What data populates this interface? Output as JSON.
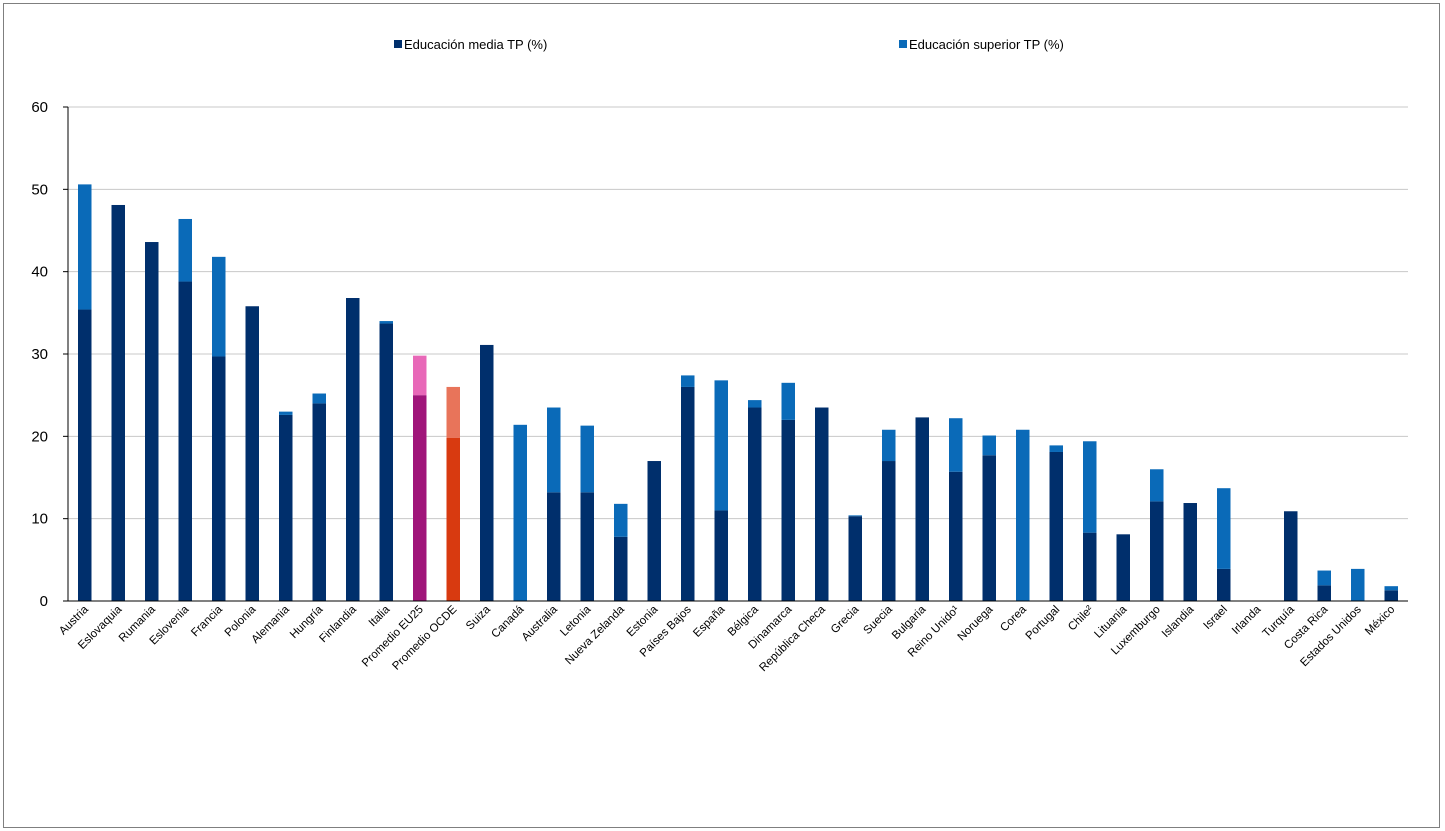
{
  "chart_data": {
    "type": "bar",
    "stacked": true,
    "title": "",
    "xlabel": "",
    "ylabel": "",
    "ylim": [
      0,
      60
    ],
    "yticks": [
      0,
      10,
      20,
      30,
      40,
      50,
      60
    ],
    "grid": true,
    "legend_position": "top",
    "categories": [
      "Austria",
      "Eslovaquia",
      "Rumania",
      "Eslovenia",
      "Francia",
      "Polonia",
      "Alemania",
      "Hungría",
      "Finlandia",
      "Italia",
      "Promedio EU25",
      "Promedio OCDE",
      "Suiza",
      "Canadá",
      "Australia",
      "Letonia",
      "Nueva Zelanda",
      "Estonia",
      "Países Bajos",
      "España",
      "Bélgica",
      "Dinamarca",
      "República Checa",
      "Grecia",
      "Suecia",
      "Bulgaria",
      "Reino Unido¹",
      "Noruega",
      "Corea",
      "Portugal",
      "Chile²",
      "Lituania",
      "Luxemburgo",
      "Islandia",
      "Israel",
      "Irlanda",
      "Turquía",
      "Costa Rica",
      "Estados Unidos",
      "México"
    ],
    "series": [
      {
        "name": "Educación media TP (%)",
        "color": "#002f6c",
        "values": [
          35.4,
          48.1,
          43.6,
          38.8,
          29.7,
          35.8,
          22.6,
          24.0,
          36.8,
          33.7,
          25.0,
          19.8,
          31.1,
          0,
          13.2,
          13.2,
          7.8,
          17.0,
          26.0,
          11.0,
          23.5,
          22.0,
          23.5,
          10.3,
          17.0,
          22.3,
          15.7,
          17.7,
          0,
          18.1,
          8.3,
          8.1,
          12.1,
          11.9,
          3.9,
          0,
          10.9,
          1.9,
          0,
          1.3
        ]
      },
      {
        "name": "Educación superior TP (%)",
        "color": "#0a6ab8",
        "values": [
          15.2,
          0,
          0,
          7.6,
          12.1,
          0,
          0.4,
          1.2,
          0,
          0.3,
          4.8,
          6.2,
          0,
          21.4,
          10.3,
          8.1,
          4.0,
          0,
          1.4,
          15.8,
          0.9,
          4.5,
          0,
          0.1,
          3.8,
          0,
          6.5,
          2.4,
          20.8,
          0.8,
          11.1,
          0,
          3.9,
          0,
          9.8,
          0,
          0,
          1.8,
          3.9,
          0.5
        ]
      }
    ],
    "highlight_colors": {
      "Promedio EU25": [
        "#a0157a",
        "#e868b8"
      ],
      "Promedio OCDE": [
        "#d83a10",
        "#e8745a"
      ]
    }
  }
}
